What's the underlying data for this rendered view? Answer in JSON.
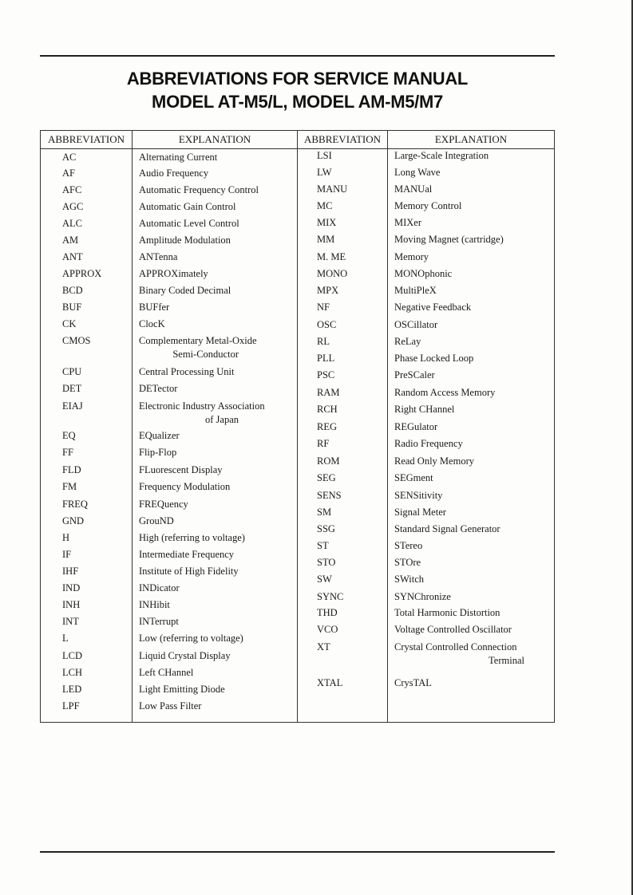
{
  "title_line1": "ABBREVIATIONS FOR SERVICE MANUAL",
  "title_line2": "MODEL AT-M5/L, MODEL AM-M5/M7",
  "table": {
    "headers": [
      "ABBREVIATION",
      "EXPLANATION",
      "ABBREVIATION",
      "EXPLANATION"
    ],
    "left": [
      {
        "abbr": "AC",
        "expl": "Alternating Current"
      },
      {
        "abbr": "AF",
        "expl": "Audio Frequency"
      },
      {
        "abbr": "AFC",
        "expl": "Automatic Frequency Control"
      },
      {
        "abbr": "AGC",
        "expl": "Automatic Gain Control"
      },
      {
        "abbr": "ALC",
        "expl": "Automatic Level Control"
      },
      {
        "abbr": "AM",
        "expl": "Amplitude Modulation"
      },
      {
        "abbr": "ANT",
        "expl": "ANTenna"
      },
      {
        "abbr": "APPROX",
        "expl": "APPROXimately"
      },
      {
        "abbr": "BCD",
        "expl": "Binary Coded Decimal"
      },
      {
        "abbr": "BUF",
        "expl": "BUFfer"
      },
      {
        "abbr": "CK",
        "expl": "ClocK"
      },
      {
        "abbr": "CMOS",
        "expl": "Complementary Metal-Oxide",
        "expl2": "Semi-Conductor"
      },
      {
        "abbr": "CPU",
        "expl": "Central Processing Unit"
      },
      {
        "abbr": "DET",
        "expl": "DETector"
      },
      {
        "abbr": "EIAJ",
        "expl": "Electronic Industry Association",
        "expl2": "of Japan"
      },
      {
        "abbr": "EQ",
        "expl": "EQualizer"
      },
      {
        "abbr": "FF",
        "expl": "Flip-Flop"
      },
      {
        "abbr": "FLD",
        "expl": "FLuorescent Display"
      },
      {
        "abbr": "FM",
        "expl": "Frequency Modulation"
      },
      {
        "abbr": "FREQ",
        "expl": "FREQuency"
      },
      {
        "abbr": "GND",
        "expl": "GrouND"
      },
      {
        "abbr": "H",
        "expl": "High (referring to voltage)"
      },
      {
        "abbr": "IF",
        "expl": "Intermediate Frequency"
      },
      {
        "abbr": "IHF",
        "expl": "Institute of High Fidelity"
      },
      {
        "abbr": "IND",
        "expl": "INDicator"
      },
      {
        "abbr": "INH",
        "expl": "INHibit"
      },
      {
        "abbr": "INT",
        "expl": "INTerrupt"
      },
      {
        "abbr": "L",
        "expl": "Low (referring to voltage)"
      },
      {
        "abbr": "LCD",
        "expl": "Liquid Crystal Display"
      },
      {
        "abbr": "LCH",
        "expl": "Left CHannel"
      },
      {
        "abbr": "LED",
        "expl": "Light Emitting Diode"
      },
      {
        "abbr": "LPF",
        "expl": "Low Pass Filter"
      }
    ],
    "right": [
      {
        "abbr": "LSI",
        "expl": "Large-Scale Integration"
      },
      {
        "abbr": "LW",
        "expl": "Long Wave"
      },
      {
        "abbr": "MANU",
        "expl": "MANUal"
      },
      {
        "abbr": "MC",
        "expl": "Memory Control"
      },
      {
        "abbr": "MIX",
        "expl": "MIXer"
      },
      {
        "abbr": "MM",
        "expl": "Moving Magnet (cartridge)"
      },
      {
        "abbr": "M. ME",
        "expl": "Memory"
      },
      {
        "abbr": "MONO",
        "expl": "MONOphonic"
      },
      {
        "abbr": "MPX",
        "expl": "MultiPleX"
      },
      {
        "abbr": "NF",
        "expl": "Negative Feedback"
      },
      {
        "abbr": "OSC",
        "expl": "OSCillator"
      },
      {
        "abbr": "RL",
        "expl": "ReLay"
      },
      {
        "abbr": "PLL",
        "expl": "Phase Locked Loop"
      },
      {
        "abbr": "PSC",
        "expl": "PreSCaler"
      },
      {
        "abbr": "RAM",
        "expl": "Random Access Memory"
      },
      {
        "abbr": "RCH",
        "expl": "Right CHannel"
      },
      {
        "abbr": "REG",
        "expl": "REGulator"
      },
      {
        "abbr": "RF",
        "expl": "Radio Frequency"
      },
      {
        "abbr": "ROM",
        "expl": "Read Only Memory"
      },
      {
        "abbr": "SEG",
        "expl": "SEGment"
      },
      {
        "abbr": "SENS",
        "expl": "SENSitivity"
      },
      {
        "abbr": "SM",
        "expl": "Signal Meter"
      },
      {
        "abbr": "SSG",
        "expl": "Standard Signal Generator"
      },
      {
        "abbr": "ST",
        "expl": "STereo"
      },
      {
        "abbr": "STO",
        "expl": "STOre"
      },
      {
        "abbr": "SW",
        "expl": "SWitch"
      },
      {
        "abbr": "SYNC",
        "expl": "SYNChronize"
      },
      {
        "abbr": "THD",
        "expl": "Total Harmonic Distortion"
      },
      {
        "abbr": "VCO",
        "expl": "Voltage Controlled Oscillator"
      },
      {
        "abbr": "XT",
        "expl": "Crystal Controlled Connection",
        "expl2": "Terminal"
      },
      {
        "abbr": "XTAL",
        "expl": "CrysTAL"
      }
    ]
  }
}
